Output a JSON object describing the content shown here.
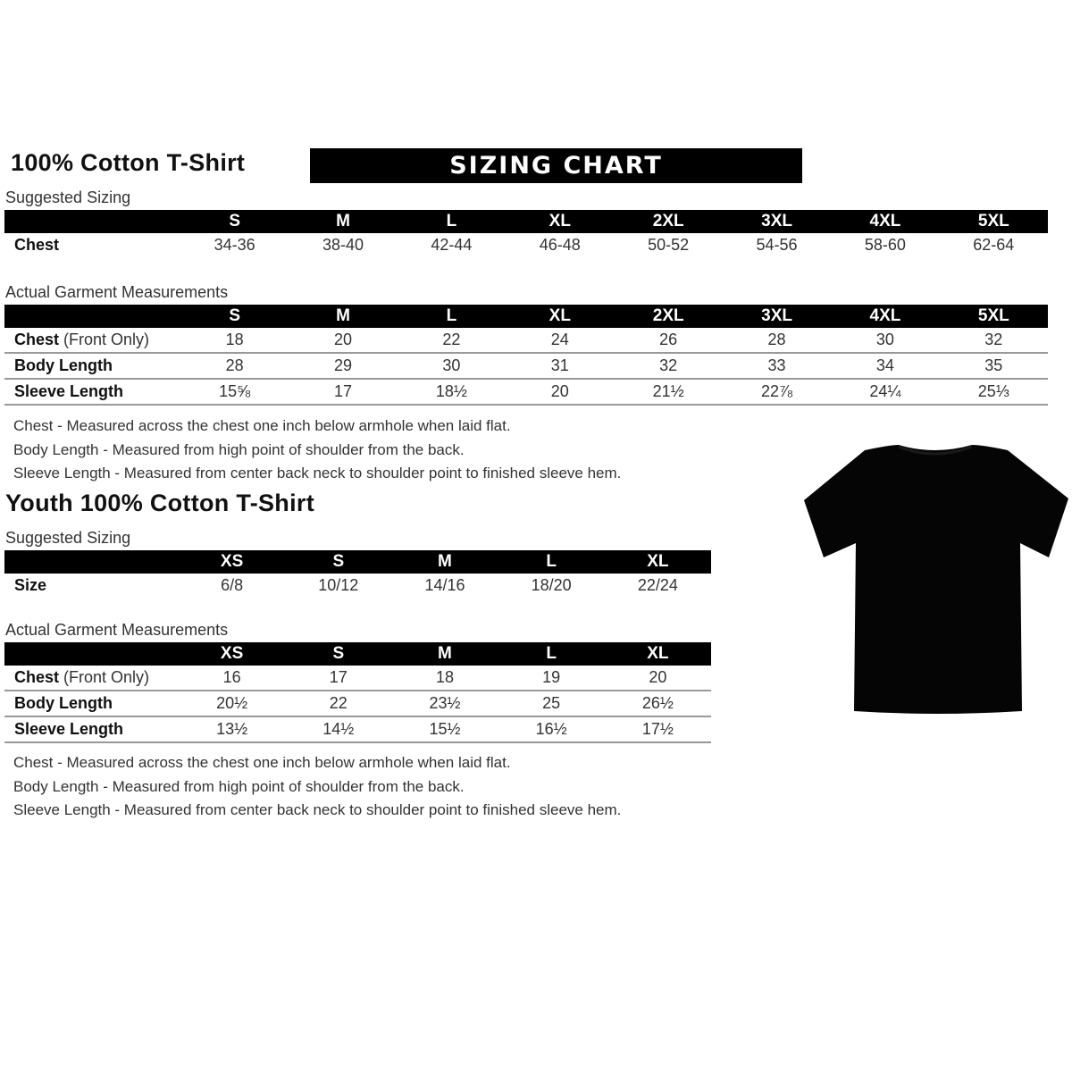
{
  "adult": {
    "title": "100% Cotton T-Shirt",
    "banner": "SIZING CHART",
    "suggested": {
      "label": "Suggested Sizing",
      "sizes": [
        "S",
        "M",
        "L",
        "XL",
        "2XL",
        "3XL",
        "4XL",
        "5XL"
      ],
      "rows": [
        {
          "label": "Chest",
          "values": [
            "34-36",
            "38-40",
            "42-44",
            "46-48",
            "50-52",
            "54-56",
            "58-60",
            "62-64"
          ]
        }
      ]
    },
    "actual": {
      "label": "Actual Garment Measurements",
      "sizes": [
        "S",
        "M",
        "L",
        "XL",
        "2XL",
        "3XL",
        "4XL",
        "5XL"
      ],
      "rows": [
        {
          "label": "Chest",
          "note": "(Front Only)",
          "values": [
            "18",
            "20",
            "22",
            "24",
            "26",
            "28",
            "30",
            "32"
          ]
        },
        {
          "label": "Body Length",
          "values": [
            "28",
            "29",
            "30",
            "31",
            "32",
            "33",
            "34",
            "35"
          ]
        },
        {
          "label": "Sleeve Length",
          "values": [
            "15⅝",
            "17",
            "18½",
            "20",
            "21½",
            "22⅞",
            "24¼",
            "25⅓"
          ]
        }
      ]
    },
    "notes": [
      "Chest - Measured across the chest one inch below armhole when laid flat.",
      "Body Length - Measured from high point of shoulder from the back.",
      "Sleeve Length - Measured from center back neck to shoulder point to finished sleeve hem."
    ]
  },
  "youth": {
    "title": "Youth 100% Cotton T-Shirt",
    "suggested": {
      "label": "Suggested Sizing",
      "sizes": [
        "XS",
        "S",
        "M",
        "L",
        "XL"
      ],
      "rows": [
        {
          "label": "Size",
          "values": [
            "6/8",
            "10/12",
            "14/16",
            "18/20",
            "22/24"
          ]
        }
      ]
    },
    "actual": {
      "label": "Actual Garment Measurements",
      "sizes": [
        "XS",
        "S",
        "M",
        "L",
        "XL"
      ],
      "rows": [
        {
          "label": "Chest",
          "note": "(Front Only)",
          "values": [
            "16",
            "17",
            "18",
            "19",
            "20"
          ]
        },
        {
          "label": "Body Length",
          "values": [
            "20½",
            "22",
            "23½",
            "25",
            "26½"
          ]
        },
        {
          "label": "Sleeve Length",
          "values": [
            "13½",
            "14½",
            "15½",
            "16½",
            "17½"
          ]
        }
      ]
    },
    "notes": [
      "Chest - Measured across the chest one inch below armhole when laid flat.",
      "Body Length - Measured from high point of shoulder from the back.",
      "Sleeve Length - Measured from center back neck to shoulder point to finished sleeve hem."
    ]
  },
  "image": {
    "name": "black-tshirt",
    "color": "#000000"
  }
}
